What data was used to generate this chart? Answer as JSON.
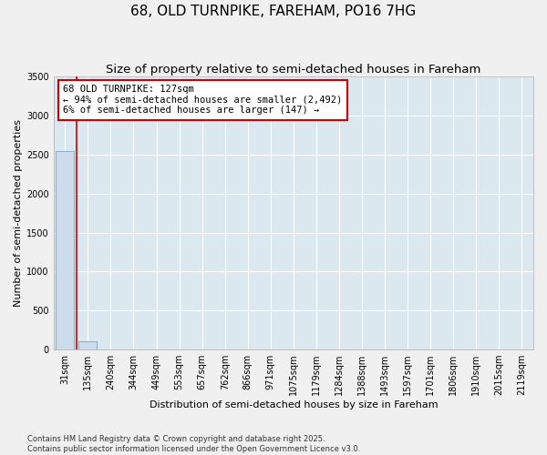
{
  "title": "68, OLD TURNPIKE, FAREHAM, PO16 7HG",
  "subtitle": "Size of property relative to semi-detached houses in Fareham",
  "xlabel": "Distribution of semi-detached houses by size in Fareham",
  "ylabel": "Number of semi-detached properties",
  "categories": [
    "31sqm",
    "135sqm",
    "240sqm",
    "344sqm",
    "449sqm",
    "553sqm",
    "657sqm",
    "762sqm",
    "866sqm",
    "971sqm",
    "1075sqm",
    "1179sqm",
    "1284sqm",
    "1388sqm",
    "1493sqm",
    "1597sqm",
    "1701sqm",
    "1806sqm",
    "1910sqm",
    "2015sqm",
    "2119sqm"
  ],
  "bar_values": [
    2550,
    110,
    0,
    0,
    0,
    0,
    0,
    0,
    0,
    0,
    0,
    0,
    0,
    0,
    0,
    0,
    0,
    0,
    0,
    0,
    0
  ],
  "bar_color": "#ccdcec",
  "bar_edge_color": "#6699bb",
  "red_line_x": 0.5,
  "red_line_color": "#cc0000",
  "annotation_text": "68 OLD TURNPIKE: 127sqm\n← 94% of semi-detached houses are smaller (2,492)\n6% of semi-detached houses are larger (147) →",
  "annotation_box_color": "#cc0000",
  "ylim": [
    0,
    3500
  ],
  "yticks": [
    0,
    500,
    1000,
    1500,
    2000,
    2500,
    3000,
    3500
  ],
  "fig_bg_color": "#f0f0f0",
  "plot_bg_color": "#dce8f0",
  "grid_color": "#ffffff",
  "footer_text": "Contains HM Land Registry data © Crown copyright and database right 2025.\nContains public sector information licensed under the Open Government Licence v3.0.",
  "title_fontsize": 11,
  "subtitle_fontsize": 9.5,
  "label_fontsize": 8,
  "tick_fontsize": 7,
  "annotation_fontsize": 7.5,
  "footer_fontsize": 6
}
